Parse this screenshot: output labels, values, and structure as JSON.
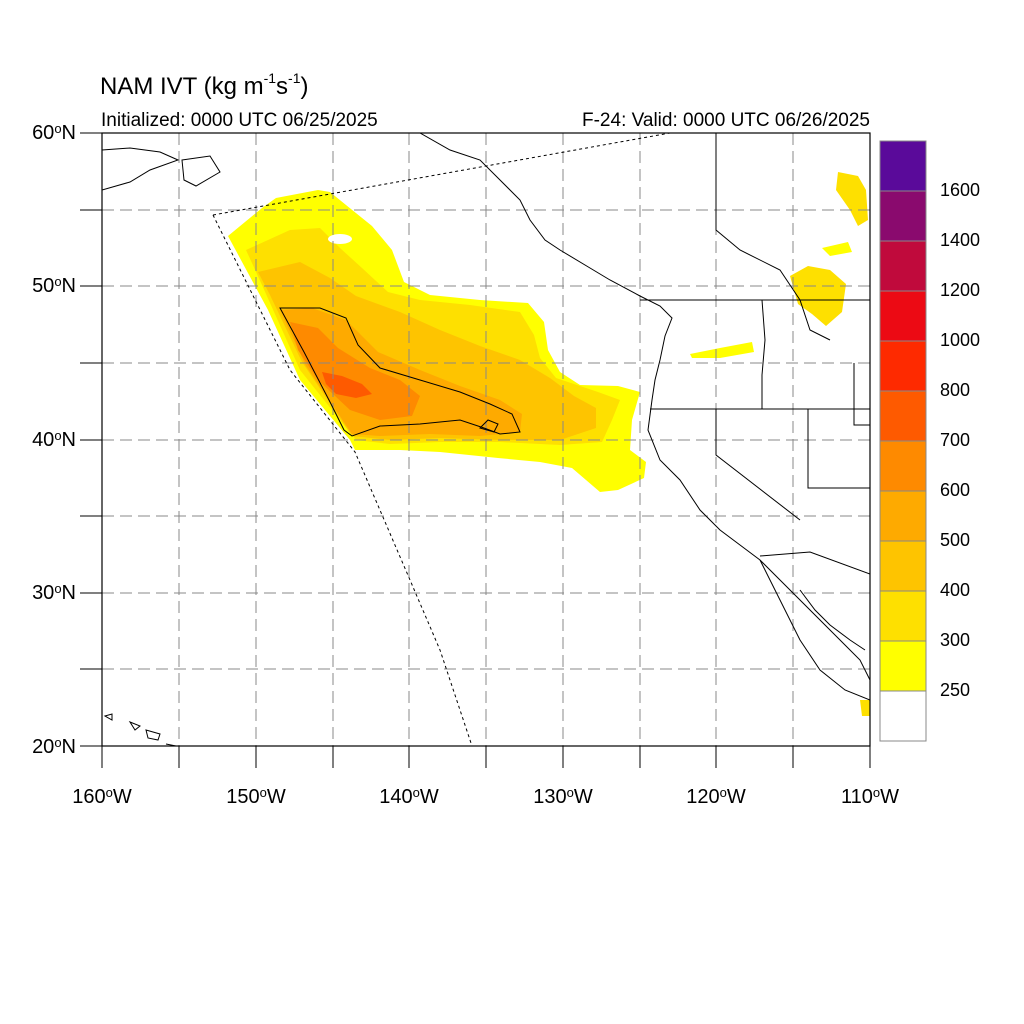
{
  "map": {
    "model": "NAM",
    "title_main": "NAM IVT (kg m",
    "title_exp1": "-1",
    "title_mid": "s",
    "title_exp2": "-1",
    "title_end": ")",
    "initialized": "Initialized: 0000 UTC 06/25/2025",
    "valid": "F-24: Valid: 0000 UTC 06/26/2025",
    "variable": "Integrated Vapor Transport",
    "units": "kg m-1 s-1",
    "extent": {
      "lon_min": -160,
      "lon_max": -110,
      "lat_min": 20,
      "lat_max": 60
    },
    "grid": "dashed-gray, 5 degree",
    "lat_labels": [
      {
        "value": "60",
        "hemi": "N"
      },
      {
        "value": "50",
        "hemi": "N"
      },
      {
        "value": "40",
        "hemi": "N"
      },
      {
        "value": "30",
        "hemi": "N"
      },
      {
        "value": "20",
        "hemi": "N"
      }
    ],
    "lon_labels": [
      {
        "value": "160",
        "hemi": "W"
      },
      {
        "value": "150",
        "hemi": "W"
      },
      {
        "value": "140",
        "hemi": "W"
      },
      {
        "value": "130",
        "hemi": "W"
      },
      {
        "value": "120",
        "hemi": "W"
      },
      {
        "value": "110",
        "hemi": "W"
      }
    ]
  },
  "colorbar": {
    "labels": [
      "1600",
      "1400",
      "1200",
      "1000",
      "800",
      "700",
      "600",
      "500",
      "400",
      "300",
      "250"
    ],
    "colors_top_to_bottom": [
      "#5a0a9a",
      "#8a0a6e",
      "#c00a3c",
      "#ec0a14",
      "#fe2a00",
      "#fe5a00",
      "#fe8a00",
      "#feaa00",
      "#fec400",
      "#fee000",
      "#ffff00",
      "#ffffff"
    ],
    "colors": {
      "250": "#ffff00",
      "300": "#fee000",
      "400": "#fec400",
      "500": "#feaa00",
      "600": "#fe8a00",
      "700": "#fe5a00"
    }
  }
}
